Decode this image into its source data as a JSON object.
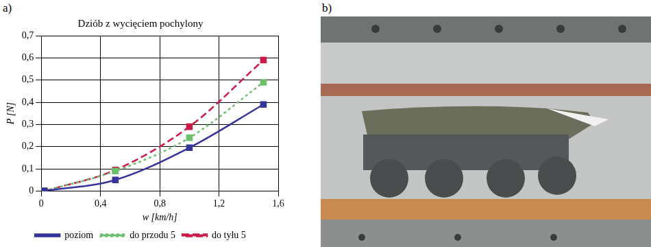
{
  "panel_labels": [
    "a)",
    "b)"
  ],
  "chart_data": {
    "type": "line",
    "title": "Dziób z wycięciem pochylony",
    "x_label": "w [km/h]",
    "y_label": "P [N]",
    "x": [
      0.02,
      0.5,
      1.0,
      1.5
    ],
    "series": [
      {
        "name": "poziom",
        "color": "#34349a",
        "line_style": "solid",
        "marker": "square",
        "values": [
          0,
          0.05,
          0.195,
          0.39
        ]
      },
      {
        "name": "do przodu 5",
        "color": "#6cbf6c",
        "line_style": "dotted",
        "marker": "square",
        "values": [
          0,
          0.09,
          0.24,
          0.49
        ]
      },
      {
        "name": "do tyłu 5",
        "color": "#cc1b48",
        "line_style": "dashed",
        "marker": "square",
        "values": [
          0,
          0.095,
          0.29,
          0.59
        ]
      }
    ],
    "xlim": [
      0,
      1.6
    ],
    "xticks": [
      0,
      {
        "value": 0.4,
        "label": "0,4"
      },
      {
        "value": 0.8,
        "label": "0,8"
      },
      {
        "value": 1.2,
        "label": "1,2"
      },
      {
        "value": 1.6,
        "label": "1,6"
      }
    ],
    "ylim": [
      0,
      0.7
    ],
    "yticks": [
      0,
      {
        "value": 0.1,
        "label": "0,1"
      },
      {
        "value": 0.2,
        "label": "0,2"
      },
      {
        "value": 0.3,
        "label": "0,3"
      },
      {
        "value": 0.4,
        "label": "0,4"
      },
      {
        "value": 0.5,
        "label": "0,5"
      },
      {
        "value": 0.6,
        "label": "0,6"
      },
      {
        "value": 0.7,
        "label": "0,7"
      }
    ],
    "grid": true,
    "legend": "bottom"
  }
}
